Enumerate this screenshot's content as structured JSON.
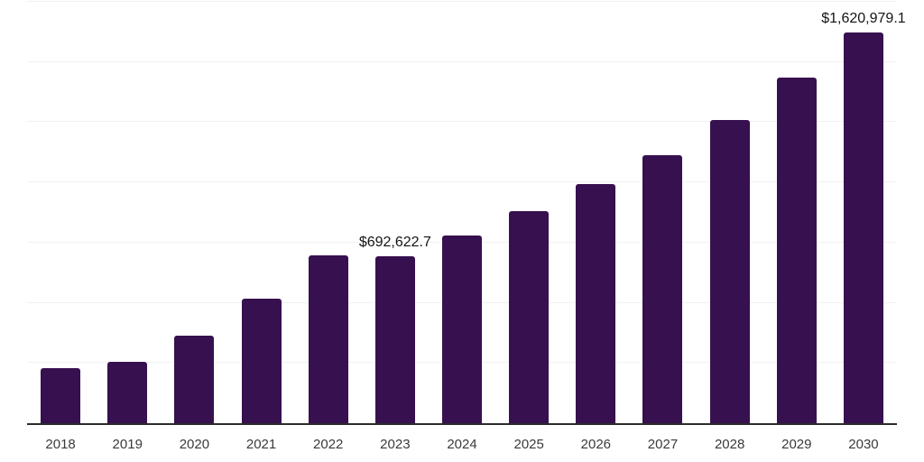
{
  "chart_data": {
    "type": "bar",
    "title": "",
    "xlabel": "",
    "ylabel": "",
    "categories": [
      "2018",
      "2019",
      "2020",
      "2021",
      "2022",
      "2023",
      "2024",
      "2025",
      "2026",
      "2027",
      "2028",
      "2029",
      "2030"
    ],
    "values": [
      230000,
      256000,
      364000,
      516000,
      696000,
      692622.7,
      781000,
      882000,
      992000,
      1114000,
      1260000,
      1435000,
      1620979.1
    ],
    "data_labels": {
      "2023": "$692,622.7",
      "2030": "$1,620,979.1"
    },
    "ylim": [
      0,
      1750000
    ],
    "gridline_interval": 250000,
    "grid": "horizontal-only",
    "legend": "none",
    "y_axis_tick_labels": "none",
    "bar_color": "#37104f",
    "axis_line_color": "#2b2b2b",
    "gridline_color": "#f1f1f3",
    "tick_label_color": "#3a3a3a",
    "data_label_color": "#141414"
  }
}
